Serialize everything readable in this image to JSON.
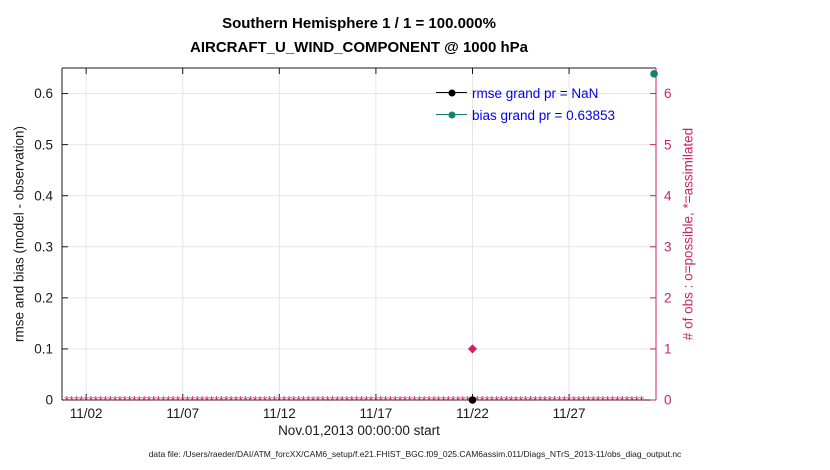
{
  "title": {
    "line1": "Southern Hemisphere 1 / 1 = 100.000%",
    "line2": "AIRCRAFT_U_WIND_COMPONENT @ 1000 hPa"
  },
  "legend": [
    {
      "label": "rmse grand pr = NaN",
      "color": "#000000",
      "marker": "circle"
    },
    {
      "label": "bias grand pr = 0.63853",
      "color": "#128177",
      "marker": "circle"
    }
  ],
  "footer": "data file: /Users/raeder/DAI/ATM_forcXX/CAM6_setup/f.e21.FHIST_BGC.f09_025.CAM6assim.011/Diags_NTrS_2013-11/obs_diag_output.nc",
  "colors": {
    "obs": "#cc2366",
    "bias": "#128177",
    "rmse": "#000000",
    "legend_text": "#0000ee",
    "grid": "#e6e6e6",
    "axis": "#1a1a1a",
    "background": "#ffffff"
  },
  "chart_data": {
    "type": "line",
    "title": "Southern Hemisphere 1 / 1 = 100.000% — AIRCRAFT_U_WIND_COMPONENT @ 1000 hPa",
    "x_axis": {
      "label": "Nov.01,2013 00:00:00 start",
      "range_days": [
        0.75,
        31.5
      ],
      "ticks": [
        {
          "day": 2,
          "label": "11/02"
        },
        {
          "day": 7,
          "label": "11/07"
        },
        {
          "day": 12,
          "label": "11/12"
        },
        {
          "day": 17,
          "label": "11/17"
        },
        {
          "day": 22,
          "label": "11/22"
        },
        {
          "day": 27,
          "label": "11/27"
        }
      ]
    },
    "left_axis": {
      "label": "rmse and bias (model - observation)",
      "range": [
        0,
        0.65
      ],
      "ticks": [
        0,
        0.1,
        0.2,
        0.3,
        0.4,
        0.5,
        0.6
      ]
    },
    "right_axis": {
      "label": "# of obs : o=possible, *=assimilated",
      "range": [
        0,
        6.5
      ],
      "ticks": [
        0,
        1,
        2,
        3,
        4,
        5,
        6
      ]
    },
    "series": [
      {
        "name": "rmse",
        "axis": "left",
        "marker": "circle",
        "color": "#000000",
        "grand_value": "NaN",
        "points": [
          {
            "day": 22,
            "value": 0
          }
        ]
      },
      {
        "name": "bias",
        "axis": "left",
        "marker": "circle",
        "color": "#128177",
        "grand_value": 0.63853,
        "points": [
          {
            "day": 31.4,
            "value": 0.63853
          }
        ]
      },
      {
        "name": "obs_count",
        "axis": "right",
        "marker": "diamond",
        "color": "#cc2366",
        "points": [
          {
            "day": 22,
            "value": 1
          }
        ],
        "zero_markers": {
          "start_day": 1,
          "end_day": 30.75,
          "step_days": 0.25,
          "value": 0,
          "marker": "asterisk"
        }
      }
    ]
  }
}
